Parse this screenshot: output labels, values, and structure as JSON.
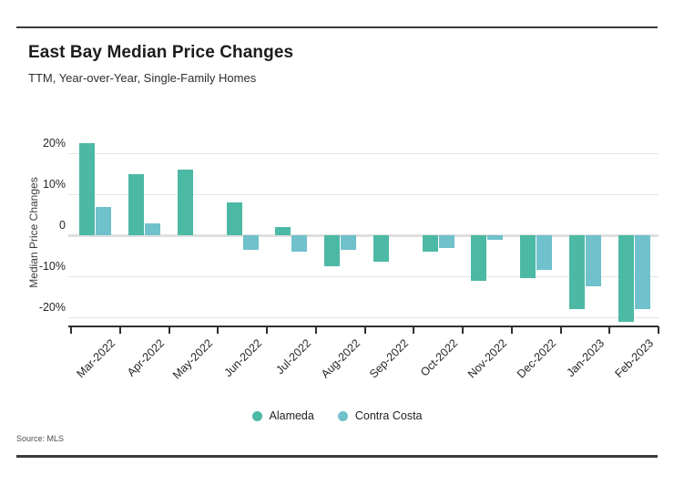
{
  "header": {
    "title": "East Bay Median Price Changes",
    "subtitle": "TTM, Year-over-Year, Single-Family Homes"
  },
  "source": {
    "label": "Source: MLS"
  },
  "legend": {
    "items": [
      {
        "label": "Alameda",
        "color": "#4CB9A4"
      },
      {
        "label": "Contra Costa",
        "color": "#6FC1CC"
      }
    ]
  },
  "colors": {
    "alameda": "#4CB9A4",
    "contra_costa": "#6FC1CC",
    "gridline": "#e4e4e4",
    "axis": "#2f2f2f",
    "rule": "#3b3b3b"
  },
  "chart_data": {
    "type": "bar",
    "title": "East Bay Median Price Changes",
    "subtitle": "TTM, Year-over-Year, Single-Family Homes",
    "categories": [
      "Mar-2022",
      "Apr-2022",
      "May-2022",
      "Jun-2022",
      "Jul-2022",
      "Aug-2022",
      "Sep-2022",
      "Oct-2022",
      "Nov-2022",
      "Dec-2022",
      "Jan-2023",
      "Feb-2023"
    ],
    "series": [
      {
        "name": "Alameda",
        "color": "#4CB9A4",
        "values": [
          22.5,
          15,
          16,
          8,
          2,
          -7.5,
          -6.5,
          -4,
          -11,
          -10.5,
          -18,
          -21
        ]
      },
      {
        "name": "Contra Costa",
        "color": "#6FC1CC",
        "values": [
          7,
          3,
          0,
          -3.5,
          -4,
          -3.5,
          0,
          -3,
          -1,
          -8.5,
          -12.5,
          -18
        ]
      }
    ],
    "xlabel": "",
    "ylabel": "Median Price Changes",
    "ytick_labels": [
      "20%",
      "10%",
      "0",
      "-10%",
      "-20%"
    ],
    "ytick_values": [
      20,
      10,
      0,
      -10,
      -20
    ],
    "ylim": [
      -25,
      25
    ],
    "unit": "percent",
    "grid": true,
    "legend_position": "bottom",
    "source": "Source: MLS"
  }
}
